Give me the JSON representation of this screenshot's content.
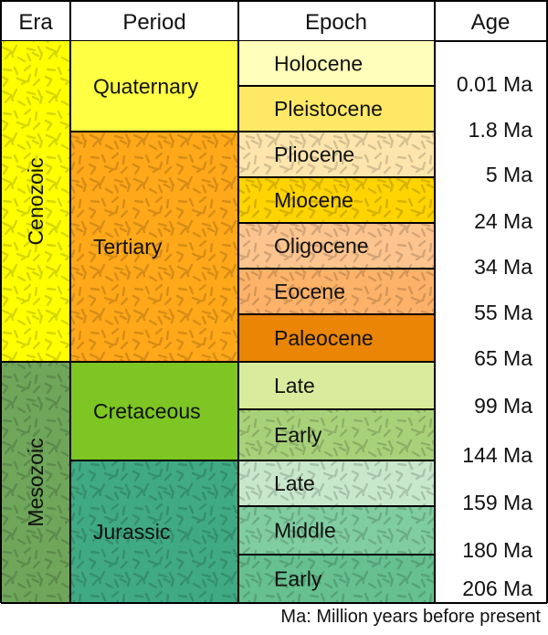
{
  "headers": {
    "era": "Era",
    "period": "Period",
    "epoch": "Epoch",
    "age": "Age"
  },
  "eras": [
    {
      "name": "Cenozoic",
      "color": "#ffff00",
      "textured": true
    },
    {
      "name": "Mesozoic",
      "color": "#6fa65a",
      "textured": true
    }
  ],
  "periods": [
    {
      "name": "Quaternary",
      "color": "#ffff44",
      "textured": false
    },
    {
      "name": "Tertiary",
      "color": "#ffa81a",
      "textured": true
    },
    {
      "name": "Cretaceous",
      "color": "#7dc623",
      "textured": false
    },
    {
      "name": "Jurassic",
      "color": "#3faa84",
      "textured": true
    }
  ],
  "epochs": [
    {
      "name": "Holocene",
      "color": "#ffffbb",
      "textured": false
    },
    {
      "name": "Pleistocene",
      "color": "#ffe866",
      "textured": false
    },
    {
      "name": "Pliocene",
      "color": "#fde5ad",
      "textured": true
    },
    {
      "name": "Miocene",
      "color": "#ffd400",
      "textured": true
    },
    {
      "name": "Oligocene",
      "color": "#fcc48e",
      "textured": true
    },
    {
      "name": "Eocene",
      "color": "#fdb269",
      "textured": true
    },
    {
      "name": "Paleocene",
      "color": "#ea8506",
      "textured": false
    },
    {
      "name": "Late",
      "color": "#d9ec9d",
      "textured": false
    },
    {
      "name": "Early",
      "color": "#a8d27a",
      "textured": true
    },
    {
      "name": "Late",
      "color": "#c8e8cc",
      "textured": true
    },
    {
      "name": "Middle",
      "color": "#80cda1",
      "textured": true
    },
    {
      "name": "Early",
      "color": "#66c090",
      "textured": true
    }
  ],
  "ages": [
    "0.01 Ma",
    "1.8 Ma",
    "5 Ma",
    "24 Ma",
    "34 Ma",
    "55 Ma",
    "65 Ma",
    "99 Ma",
    "144 Ma",
    "159 Ma",
    "180 Ma",
    "206 Ma"
  ],
  "footnote": "Ma: Million years before present",
  "line_color": "#000000"
}
